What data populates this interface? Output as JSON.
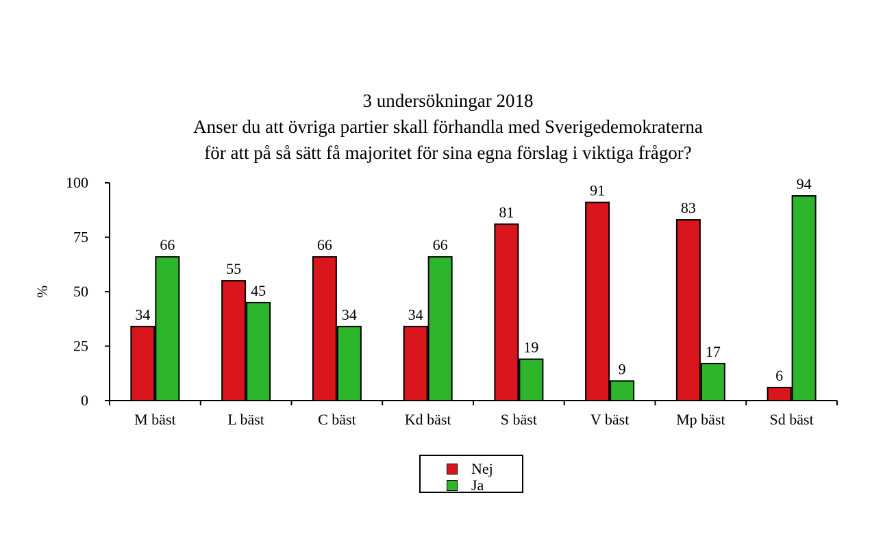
{
  "chart_data": {
    "type": "bar",
    "title": "3 undersökningar 2018",
    "subtitle": [
      "Anser du att övriga partier skall förhandla med Sverigedemokraterna",
      "för att på så sätt få majoritet för sina egna förslag i viktiga frågor?"
    ],
    "xlabel": "",
    "ylabel": "%",
    "ylim": [
      0,
      100
    ],
    "yticks": [
      0,
      25,
      50,
      75,
      100
    ],
    "categories": [
      "M bäst",
      "L bäst",
      "C bäst",
      "Kd bäst",
      "S bäst",
      "V bäst",
      "Mp bäst",
      "Sd bäst"
    ],
    "series": [
      {
        "name": "Nej",
        "color": "#d9161c",
        "values": [
          34,
          55,
          66,
          34,
          81,
          91,
          83,
          6
        ]
      },
      {
        "name": "Ja",
        "color": "#2db52c",
        "values": [
          66,
          45,
          34,
          66,
          19,
          9,
          17,
          94
        ]
      }
    ],
    "grid": false,
    "legend_position": "bottom-center"
  }
}
